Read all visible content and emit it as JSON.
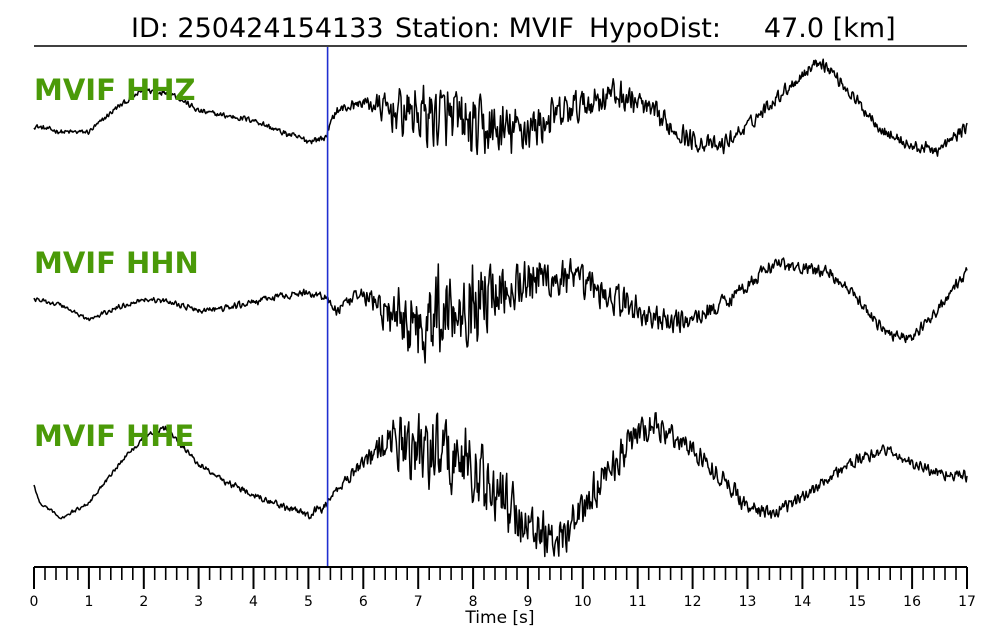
{
  "header": {
    "id_text": "ID: 250424154133",
    "station_text": "Station: MVIF",
    "dist_text": "HypoDist:     47.0 [km]"
  },
  "chart_data": {
    "type": "line",
    "title": "ID: 250424154133   Station: MVIF   HypoDist:     47.0 [km]",
    "xlabel": "Time [s]",
    "xlim": [
      0,
      17
    ],
    "xticks": [
      "0",
      "1",
      "2",
      "3",
      "4",
      "5",
      "6",
      "7",
      "8",
      "9",
      "10",
      "11",
      "12",
      "13",
      "14",
      "15",
      "16",
      "17"
    ],
    "minor_tick_step": 0.2,
    "pick_time": 5.35,
    "colors": {
      "trace": "#000000",
      "pick_line": "#1f2fd1",
      "label": "#4a9a08"
    },
    "series": [
      {
        "name": "MVIF HHZ",
        "keypoints": [
          [
            0,
            0.15
          ],
          [
            0.5,
            0.05
          ],
          [
            1,
            0.05
          ],
          [
            1.5,
            0.45
          ],
          [
            2,
            0.75
          ],
          [
            2.5,
            0.7
          ],
          [
            3,
            0.4
          ],
          [
            3.5,
            0.32
          ],
          [
            4,
            0.25
          ],
          [
            4.5,
            0.05
          ],
          [
            5,
            -0.1
          ],
          [
            5.3,
            -0.05
          ],
          [
            5.5,
            0.4
          ],
          [
            6,
            0.55
          ],
          [
            6.5,
            0.4
          ],
          [
            7,
            0.35
          ],
          [
            7.5,
            0.3
          ],
          [
            8,
            0.1
          ],
          [
            8.5,
            0.05
          ],
          [
            9,
            0.1
          ],
          [
            9.5,
            0.3
          ],
          [
            10,
            0.5
          ],
          [
            10.5,
            0.7
          ],
          [
            11,
            0.55
          ],
          [
            11.5,
            0.2
          ],
          [
            12,
            -0.1
          ],
          [
            12.5,
            -0.2
          ],
          [
            13,
            0.15
          ],
          [
            13.5,
            0.6
          ],
          [
            14,
            1.0
          ],
          [
            14.3,
            1.25
          ],
          [
            14.6,
            1.0
          ],
          [
            15,
            0.55
          ],
          [
            15.5,
            0.05
          ],
          [
            16,
            -0.2
          ],
          [
            16.5,
            -0.25
          ],
          [
            17,
            0.15
          ]
        ],
        "noise": [
          0.05,
          0.05,
          0.06,
          0.06,
          0.06,
          0.07,
          0.12,
          0.65,
          0.65,
          0.45,
          0.35,
          0.28,
          0.2,
          0.15,
          0.13,
          0.13,
          0.12,
          0.12
        ]
      },
      {
        "name": "MVIF HHN",
        "keypoints": [
          [
            0,
            0.1
          ],
          [
            0.5,
            0.0
          ],
          [
            1,
            -0.25
          ],
          [
            1.5,
            -0.05
          ],
          [
            2,
            0.1
          ],
          [
            2.5,
            0.05
          ],
          [
            3,
            -0.1
          ],
          [
            3.5,
            -0.05
          ],
          [
            4,
            0.05
          ],
          [
            4.5,
            0.15
          ],
          [
            5,
            0.2
          ],
          [
            5.3,
            0.15
          ],
          [
            5.5,
            -0.1
          ],
          [
            6,
            0.2
          ],
          [
            6.5,
            -0.2
          ],
          [
            7,
            -0.3
          ],
          [
            7.5,
            -0.05
          ],
          [
            8,
            0.05
          ],
          [
            8.5,
            0.3
          ],
          [
            9,
            0.45
          ],
          [
            9.5,
            0.45
          ],
          [
            10,
            0.35
          ],
          [
            10.5,
            0.15
          ],
          [
            11,
            -0.1
          ],
          [
            11.5,
            -0.3
          ],
          [
            12,
            -0.25
          ],
          [
            12.5,
            0.0
          ],
          [
            13,
            0.35
          ],
          [
            13.5,
            0.7
          ],
          [
            14,
            0.6
          ],
          [
            14.5,
            0.55
          ],
          [
            15,
            0.1
          ],
          [
            15.5,
            -0.45
          ],
          [
            16,
            -0.55
          ],
          [
            16.5,
            -0.05
          ],
          [
            17,
            0.55
          ]
        ],
        "noise": [
          0.04,
          0.05,
          0.05,
          0.06,
          0.07,
          0.08,
          0.15,
          0.85,
          0.8,
          0.55,
          0.38,
          0.3,
          0.22,
          0.15,
          0.13,
          0.12,
          0.12,
          0.12
        ]
      },
      {
        "name": "MVIF HHE",
        "keypoints": [
          [
            0,
            0.0
          ],
          [
            0.1,
            -0.3
          ],
          [
            0.5,
            -0.55
          ],
          [
            1,
            -0.3
          ],
          [
            1.5,
            0.3
          ],
          [
            2,
            0.8
          ],
          [
            2.4,
            0.95
          ],
          [
            3,
            0.35
          ],
          [
            3.5,
            0.05
          ],
          [
            4,
            -0.15
          ],
          [
            4.5,
            -0.35
          ],
          [
            5,
            -0.5
          ],
          [
            5.3,
            -0.35
          ],
          [
            5.5,
            -0.1
          ],
          [
            6,
            0.4
          ],
          [
            6.5,
            0.7
          ],
          [
            7,
            0.6
          ],
          [
            7.5,
            0.55
          ],
          [
            8,
            0.25
          ],
          [
            8.5,
            -0.2
          ],
          [
            9,
            -0.65
          ],
          [
            9.5,
            -0.9
          ],
          [
            10,
            -0.45
          ],
          [
            10.5,
            0.3
          ],
          [
            11,
            0.85
          ],
          [
            11.3,
            1.0
          ],
          [
            12,
            0.6
          ],
          [
            12.5,
            0.15
          ],
          [
            13,
            -0.35
          ],
          [
            13.5,
            -0.5
          ],
          [
            14,
            -0.2
          ],
          [
            14.5,
            0.15
          ],
          [
            15,
            0.4
          ],
          [
            15.5,
            0.6
          ],
          [
            16,
            0.35
          ],
          [
            16.5,
            0.2
          ],
          [
            17,
            0.15
          ]
        ],
        "noise": [
          0.03,
          0.04,
          0.05,
          0.06,
          0.06,
          0.08,
          0.15,
          0.8,
          0.75,
          0.55,
          0.4,
          0.3,
          0.22,
          0.16,
          0.14,
          0.12,
          0.12,
          0.12
        ]
      }
    ]
  }
}
